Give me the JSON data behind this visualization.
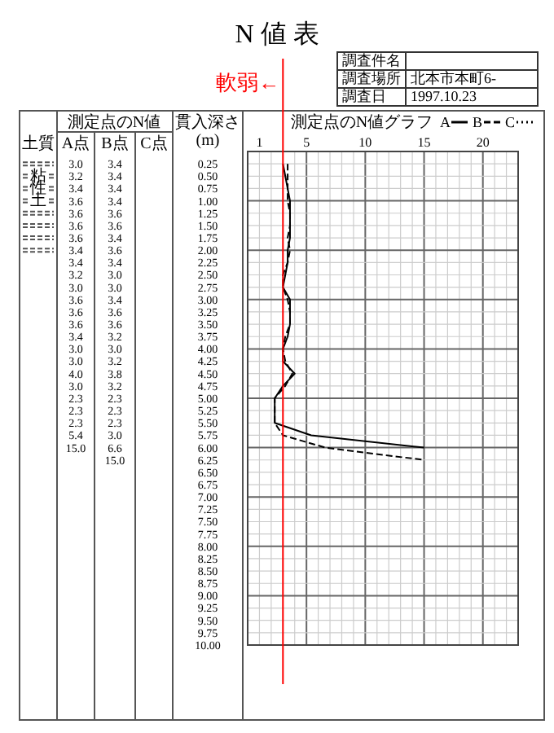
{
  "chart_data": {
    "type": "line",
    "orientation": "horizontal",
    "title": "N 値 表",
    "xlabel": "測定点のN値グラフ",
    "ylabel": "貫入深さ (m)",
    "annotations": [
      "調査件名",
      "調査場所",
      "北本市本町6-",
      "調査日",
      "1997.10.23",
      "測定点のN値",
      "土質",
      "A点",
      "B点",
      "C点",
      "粘性土"
    ],
    "categories": [
      "0.25",
      "0.50",
      "0.75",
      "1.00",
      "1.25",
      "1.50",
      "1.75",
      "2.00",
      "2.25",
      "2.50",
      "2.75",
      "3.00",
      "3.25",
      "3.50",
      "3.75",
      "4.00",
      "4.25",
      "4.50",
      "4.75",
      "5.00",
      "5.25",
      "5.50",
      "5.75",
      "6.00",
      "6.25",
      "6.50",
      "6.75",
      "7.00",
      "7.25",
      "7.50",
      "7.75",
      "8.00",
      "8.25",
      "8.50",
      "8.75",
      "9.00",
      "9.25",
      "9.50",
      "9.75",
      "10.00"
    ],
    "xlim": [
      0,
      23
    ],
    "xticks": [
      {
        "value": 0,
        "label": null
      },
      1,
      {
        "value": 2,
        "label": null
      },
      {
        "value": 3,
        "label": null
      },
      {
        "value": 4,
        "label": null
      },
      5,
      {
        "value": 6,
        "label": null
      },
      {
        "value": 7,
        "label": null
      },
      {
        "value": 8,
        "label": null
      },
      {
        "value": 9,
        "label": null
      },
      10,
      {
        "value": 11,
        "label": null
      },
      {
        "value": 12,
        "label": null
      },
      {
        "value": 13,
        "label": null
      },
      {
        "value": 14,
        "label": null
      },
      15,
      {
        "value": 16,
        "label": null
      },
      {
        "value": 17,
        "label": null
      },
      {
        "value": 18,
        "label": null
      },
      {
        "value": 19,
        "label": null
      },
      20,
      {
        "value": 21,
        "label": null
      },
      {
        "value": 22,
        "label": null
      },
      {
        "value": 23,
        "label": null
      }
    ],
    "grid": true,
    "legend": "top",
    "marker": "none",
    "ref_lines": [
      {
        "axis": "x",
        "value": 3,
        "label": "軟弱←",
        "color": "#ff0000"
      }
    ],
    "series": [
      {
        "name": "A",
        "color": "#000000",
        "line_style": "solid",
        "values": [
          3.0,
          3.2,
          3.4,
          3.6,
          3.6,
          3.6,
          3.6,
          3.4,
          3.4,
          3.2,
          3.0,
          3.6,
          3.6,
          3.6,
          3.4,
          3.0,
          3.0,
          4.0,
          3.0,
          2.3,
          2.3,
          2.3,
          5.4,
          15.0,
          null,
          null,
          null,
          null,
          null,
          null,
          null,
          null,
          null,
          null,
          null,
          null,
          null,
          null,
          null,
          null
        ],
        "value_labels": [
          "3.0",
          "3.2",
          "3.4",
          "3.6",
          "3.6",
          "3.6",
          "3.6",
          "3.4",
          "3.4",
          "3.2",
          "3.0",
          "3.6",
          "3.6",
          "3.6",
          "3.4",
          "3.0",
          "3.0",
          "4.0",
          "3.0",
          "2.3",
          "2.3",
          "2.3",
          "5.4",
          "15.0",
          null,
          null,
          null,
          null,
          null,
          null,
          null,
          null,
          null,
          null,
          null,
          null,
          null,
          null,
          null,
          null
        ]
      },
      {
        "name": "B",
        "color": "#000000",
        "line_style": "dashed",
        "values": [
          3.4,
          3.4,
          3.4,
          3.4,
          3.6,
          3.6,
          3.4,
          3.6,
          3.4,
          3.0,
          3.0,
          3.4,
          3.6,
          3.6,
          3.2,
          3.0,
          3.2,
          3.8,
          3.2,
          2.3,
          2.3,
          2.3,
          3.0,
          6.6,
          15.0,
          null,
          null,
          null,
          null,
          null,
          null,
          null,
          null,
          null,
          null,
          null,
          null,
          null,
          null,
          null
        ],
        "value_labels": [
          "3.4",
          "3.4",
          "3.4",
          "3.4",
          "3.6",
          "3.6",
          "3.4",
          "3.6",
          "3.4",
          "3.0",
          "3.0",
          "3.4",
          "3.6",
          "3.6",
          "3.2",
          "3.0",
          "3.2",
          "3.8",
          "3.2",
          "2.3",
          "2.3",
          "2.3",
          "3.0",
          "6.6",
          "15.0",
          null,
          null,
          null,
          null,
          null,
          null,
          null,
          null,
          null,
          null,
          null,
          null,
          null,
          null,
          null
        ]
      },
      {
        "name": "C",
        "color": "#000000",
        "line_style": "dotted",
        "values": [
          null,
          null,
          null,
          null,
          null,
          null,
          null,
          null,
          null,
          null,
          null,
          null,
          null,
          null,
          null,
          null,
          null,
          null,
          null,
          null,
          null,
          null,
          null,
          null,
          null,
          null,
          null,
          null,
          null,
          null,
          null,
          null,
          null,
          null,
          null,
          null,
          null,
          null,
          null,
          null
        ]
      }
    ]
  }
}
